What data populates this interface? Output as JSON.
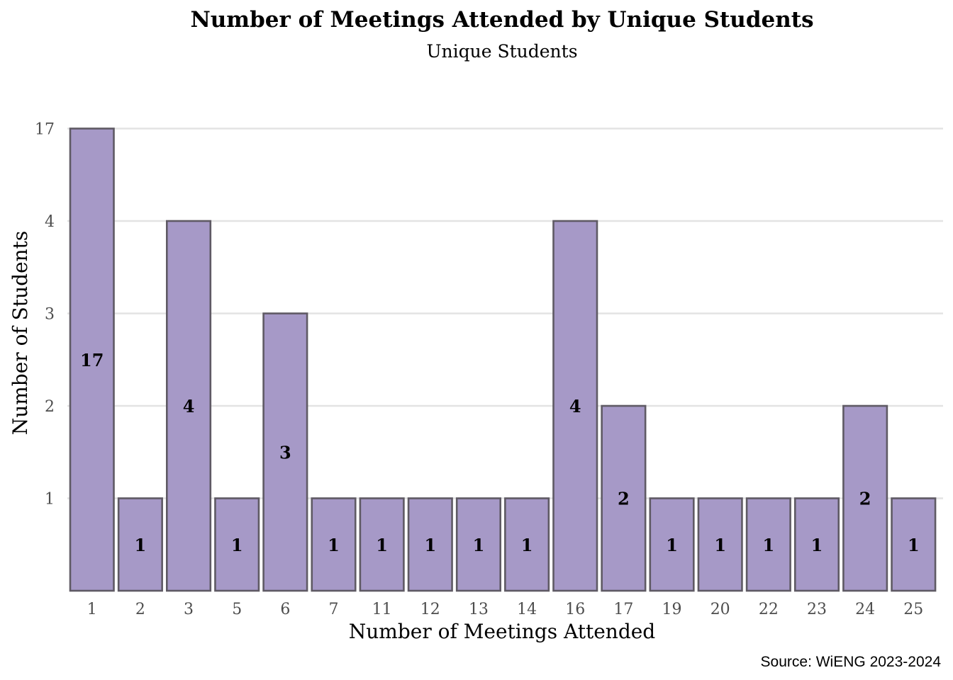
{
  "chart_data": {
    "type": "bar",
    "title": "Number of Meetings Attended by Unique Students",
    "subtitle": "Unique Students",
    "xlabel": "Number of Meetings Attended",
    "ylabel": "Number of Students",
    "caption": "Source: WiENG 2023-2024",
    "categories": [
      "1",
      "2",
      "3",
      "5",
      "6",
      "7",
      "11",
      "12",
      "13",
      "14",
      "16",
      "17",
      "19",
      "20",
      "22",
      "23",
      "24",
      "25"
    ],
    "values": [
      17,
      1,
      4,
      1,
      3,
      1,
      1,
      1,
      1,
      1,
      4,
      2,
      1,
      1,
      1,
      1,
      2,
      1
    ],
    "yticks": [
      1,
      2,
      3,
      4,
      17
    ],
    "y_scale": "categorical-rank",
    "grid": true,
    "legend": "none",
    "bar_fill_color": "#a699c7",
    "bar_stroke_color": "#5f5a64"
  }
}
